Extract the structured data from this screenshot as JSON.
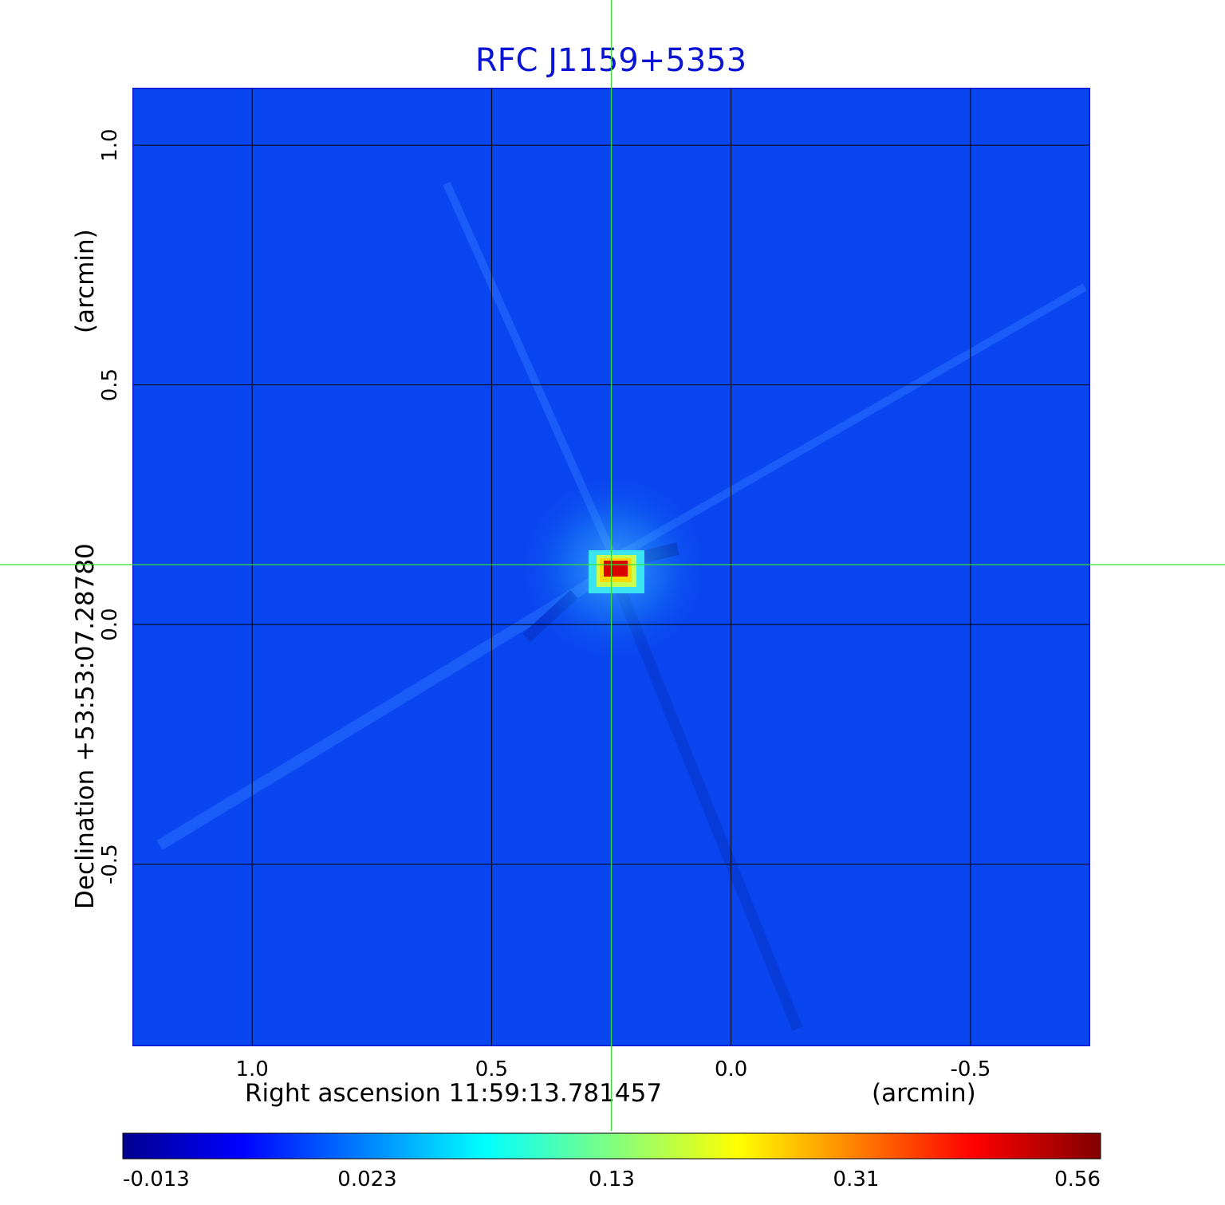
{
  "chart_data": {
    "type": "heatmap",
    "title": "RFC J1159+5353",
    "xlabel": "Right ascension  11:59:13.781457",
    "xunit": "(arcmin)",
    "ylabel": "Declination  +53:53:07.28780",
    "yunit": "(arcmin)",
    "xlim": [
      1.25,
      -0.75
    ],
    "ylim": [
      -0.88,
      1.12
    ],
    "x_ticks": [
      1.0,
      0.5,
      0.0,
      -0.5
    ],
    "x_tick_labels": [
      "1.0",
      "0.5",
      "0.0",
      "-0.5"
    ],
    "y_ticks": [
      1.0,
      0.5,
      0.0,
      -0.5
    ],
    "y_tick_labels": [
      "1.0",
      "0.5",
      "0.0",
      "-0.5"
    ],
    "grid": true,
    "crosshair": {
      "x": 0.25,
      "y": 0.125,
      "color": "#34e034"
    },
    "peak": {
      "x": 0.25,
      "y": 0.125,
      "value": 0.56
    },
    "colormap": "jet",
    "colorbar": {
      "tick_labels": [
        "-0.013",
        "0.023",
        "0.13",
        "0.31",
        "0.56"
      ],
      "min": -0.013,
      "max": 0.56
    },
    "colors": {
      "title": "#0a14d2",
      "background_field": "#0a46f0",
      "grid": "#000000",
      "crosshair": "#34e034"
    }
  }
}
